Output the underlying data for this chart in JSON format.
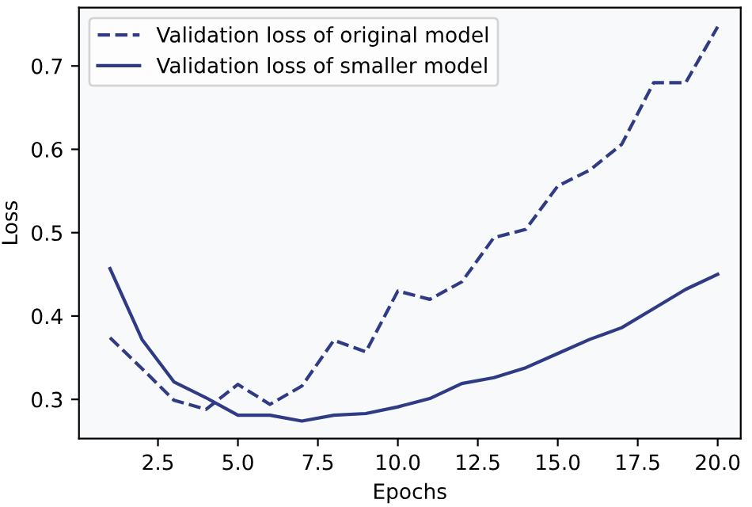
{
  "chart_data": {
    "type": "line",
    "xlabel": "Epochs",
    "ylabel": "Loss",
    "x": [
      1,
      2,
      3,
      4,
      5,
      6,
      7,
      8,
      9,
      10,
      11,
      12,
      13,
      14,
      15,
      16,
      17,
      18,
      19,
      20
    ],
    "series": [
      {
        "name": "Validation loss of original model",
        "color": "#2f3b84",
        "line_style": "dashed",
        "values": [
          0.374,
          0.337,
          0.299,
          0.288,
          0.318,
          0.294,
          0.316,
          0.371,
          0.357,
          0.43,
          0.42,
          0.441,
          0.494,
          0.504,
          0.556,
          0.575,
          0.606,
          0.68,
          0.68,
          0.747
        ]
      },
      {
        "name": "Validation loss of smaller model",
        "color": "#2f3b84",
        "line_style": "solid",
        "values": [
          0.457,
          0.372,
          0.321,
          0.302,
          0.281,
          0.281,
          0.274,
          0.281,
          0.283,
          0.291,
          0.301,
          0.319,
          0.326,
          0.338,
          0.355,
          0.372,
          0.386,
          0.409,
          0.432,
          0.45
        ]
      }
    ],
    "xlim": [
      0.03,
      20.72
    ],
    "ylim": [
      0.253,
      0.77
    ],
    "xticks": [
      {
        "value": 2.5,
        "label": "2.5"
      },
      {
        "value": 5,
        "label": "5.0"
      },
      {
        "value": 7.5,
        "label": "7.5"
      },
      {
        "value": 10,
        "label": "10.0"
      },
      {
        "value": 12.5,
        "label": "12.5"
      },
      {
        "value": 15,
        "label": "15.0"
      },
      {
        "value": 17.5,
        "label": "17.5"
      },
      {
        "value": 20,
        "label": "20.0"
      }
    ],
    "yticks": [
      0.3,
      0.4,
      0.5,
      0.6,
      0.7
    ],
    "legend": "top left",
    "grid": false
  }
}
